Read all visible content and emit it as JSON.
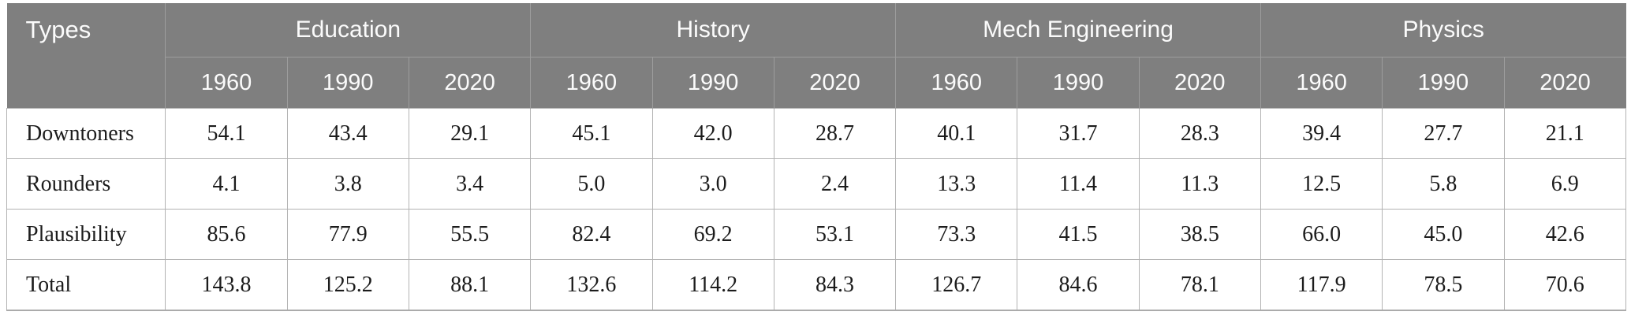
{
  "chart_data": {
    "type": "table",
    "corner_header": "Types",
    "column_groups": [
      {
        "label": "Education",
        "years": [
          "1960",
          "1990",
          "2020"
        ]
      },
      {
        "label": "History",
        "years": [
          "1960",
          "1990",
          "2020"
        ]
      },
      {
        "label": "Mech Engineering",
        "years": [
          "1960",
          "1990",
          "2020"
        ]
      },
      {
        "label": "Physics",
        "years": [
          "1960",
          "1990",
          "2020"
        ]
      }
    ],
    "rows": [
      {
        "label": "Downtoners",
        "values": [
          "54.1",
          "43.4",
          "29.1",
          "45.1",
          "42.0",
          "28.7",
          "40.1",
          "31.7",
          "28.3",
          "39.4",
          "27.7",
          "21.1"
        ]
      },
      {
        "label": "Rounders",
        "values": [
          "4.1",
          "3.8",
          "3.4",
          "5.0",
          "3.0",
          "2.4",
          "13.3",
          "11.4",
          "11.3",
          "12.5",
          "5.8",
          "6.9"
        ]
      },
      {
        "label": "Plausibility",
        "values": [
          "85.6",
          "77.9",
          "55.5",
          "82.4",
          "69.2",
          "53.1",
          "73.3",
          "41.5",
          "38.5",
          "66.0",
          "45.0",
          "42.6"
        ]
      },
      {
        "label": "Total",
        "values": [
          "143.8",
          "125.2",
          "88.1",
          "132.6",
          "114.2",
          "84.3",
          "126.7",
          "84.6",
          "78.1",
          "117.9",
          "78.5",
          "70.6"
        ]
      }
    ]
  },
  "colors": {
    "header_bg": "#7f7f7f",
    "header_text": "#fbfbfb",
    "header_line": "#9d9d9d",
    "grid_line": "#b3b3b3",
    "body_text": "#1c1c1c"
  }
}
